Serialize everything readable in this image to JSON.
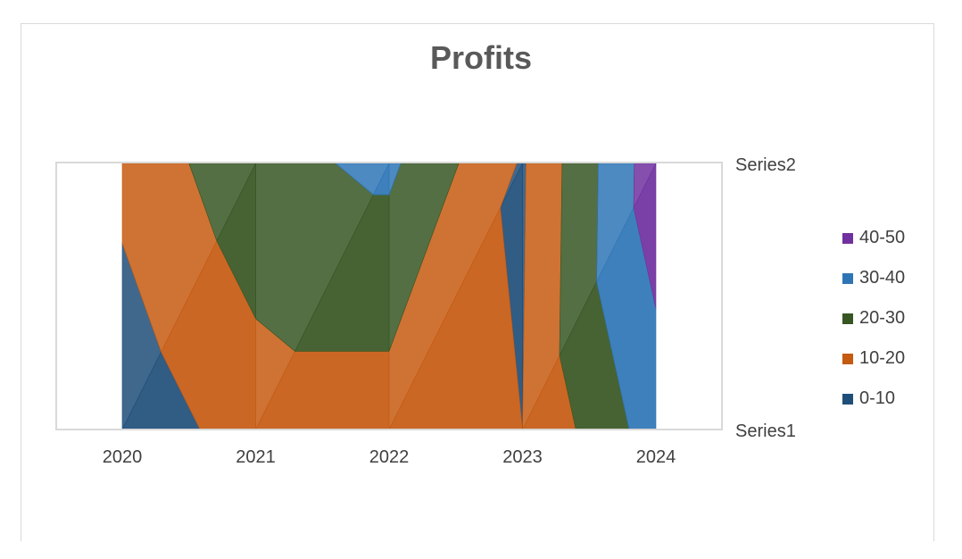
{
  "chart_data": {
    "type": "surface-contour",
    "title": "Profits",
    "categories": [
      "2020",
      "2021",
      "2022",
      "2023",
      "2024"
    ],
    "series": [
      {
        "name": "Series1",
        "values": [
          3,
          15,
          15,
          10,
          35
        ]
      },
      {
        "name": "Series2",
        "values": [
          13,
          27,
          32,
          9,
          46
        ]
      }
    ],
    "bands": [
      {
        "label": "0-10",
        "min": 0,
        "max": 10,
        "color": "#1f4e79"
      },
      {
        "label": "10-20",
        "min": 10,
        "max": 20,
        "color": "#c55a11"
      },
      {
        "label": "20-30",
        "min": 20,
        "max": 30,
        "color": "#375623"
      },
      {
        "label": "30-40",
        "min": 30,
        "max": 40,
        "color": "#2e75b6"
      },
      {
        "label": "40-50",
        "min": 40,
        "max": 50,
        "color": "#7030a0"
      }
    ],
    "legend_order": [
      "40-50",
      "30-40",
      "20-30",
      "10-20",
      "0-10"
    ],
    "legend_position": "right"
  }
}
